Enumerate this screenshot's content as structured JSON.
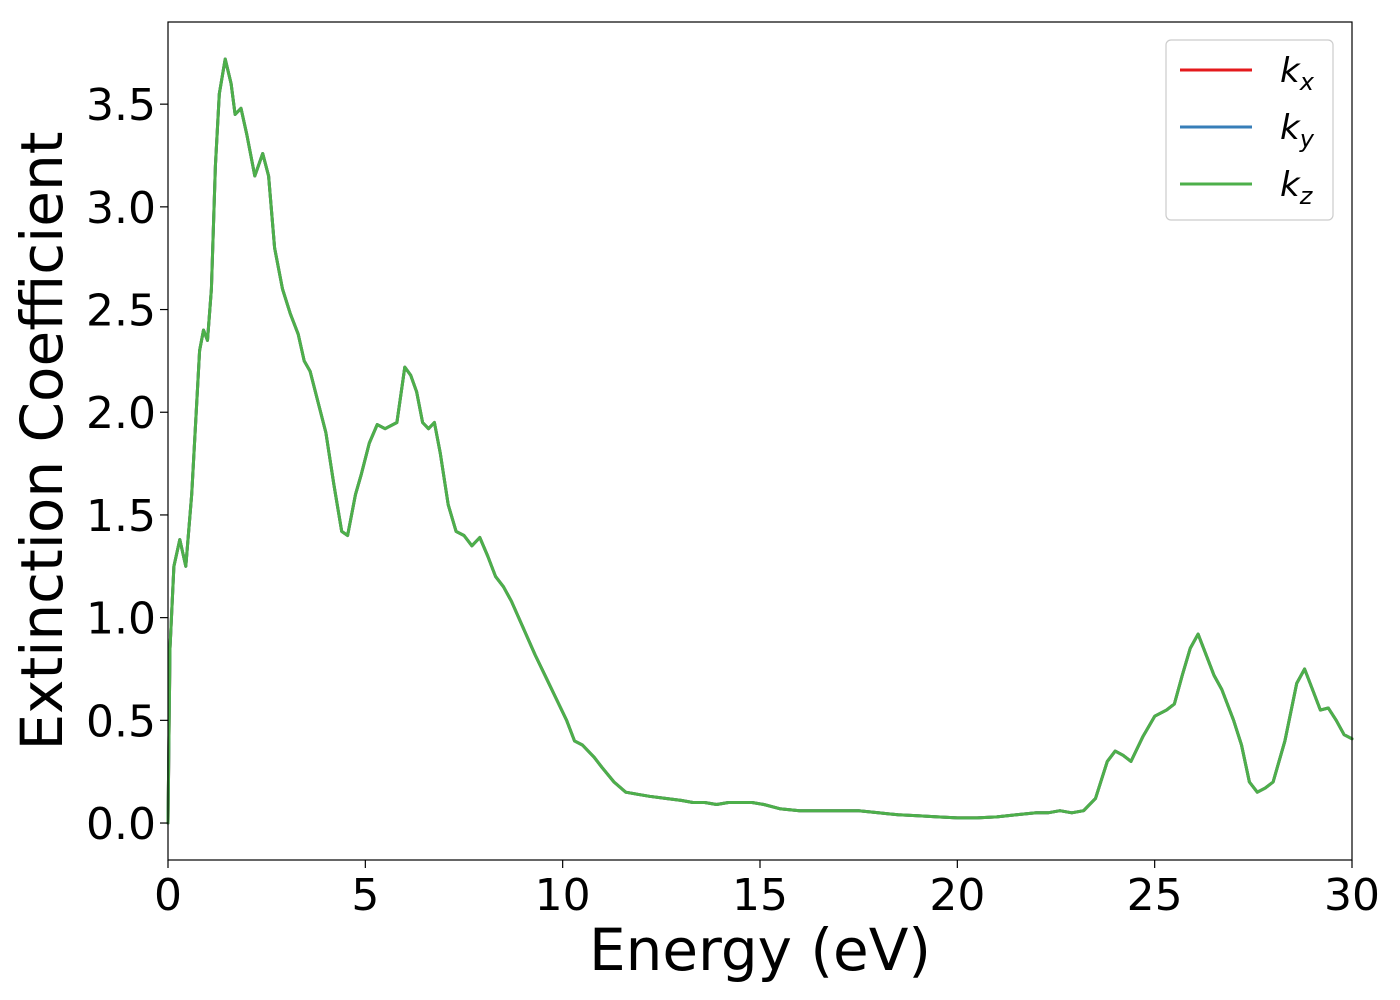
{
  "chart_data": {
    "type": "line",
    "xlabel": "Energy (eV)",
    "ylabel": "Extinction Coefficient",
    "xlim": [
      0,
      30
    ],
    "ylim": [
      -0.18,
      3.9
    ],
    "x_ticks": [
      0,
      5,
      10,
      15,
      20,
      25,
      30
    ],
    "y_ticks": [
      0.0,
      0.5,
      1.0,
      1.5,
      2.0,
      2.5,
      3.0,
      3.5
    ],
    "x_tick_labels": [
      "0",
      "5",
      "10",
      "15",
      "20",
      "25",
      "30"
    ],
    "y_tick_labels": [
      "0.0",
      "0.5",
      "1.0",
      "1.5",
      "2.0",
      "2.5",
      "3.0",
      "3.5"
    ],
    "grid": false,
    "legend_position": "top-right",
    "series": [
      {
        "name": "k",
        "subscript": "x",
        "color": "#e41a1c"
      },
      {
        "name": "k",
        "subscript": "y",
        "color": "#377eb8"
      },
      {
        "name": "k",
        "subscript": "z",
        "color": "#4daf4a"
      }
    ],
    "x": [
      0,
      0.05,
      0.15,
      0.3,
      0.45,
      0.6,
      0.8,
      0.9,
      1.0,
      1.1,
      1.2,
      1.3,
      1.45,
      1.6,
      1.7,
      1.85,
      2.0,
      2.2,
      2.4,
      2.55,
      2.7,
      2.9,
      3.1,
      3.3,
      3.45,
      3.6,
      3.8,
      4.0,
      4.2,
      4.4,
      4.55,
      4.75,
      4.9,
      5.1,
      5.3,
      5.5,
      5.8,
      6.0,
      6.15,
      6.3,
      6.45,
      6.6,
      6.75,
      6.9,
      7.1,
      7.3,
      7.5,
      7.7,
      7.9,
      8.1,
      8.3,
      8.5,
      8.7,
      9.0,
      9.3,
      9.6,
      9.9,
      10.1,
      10.3,
      10.5,
      10.8,
      11.0,
      11.3,
      11.6,
      11.9,
      12.2,
      12.6,
      13.0,
      13.3,
      13.6,
      13.9,
      14.2,
      14.5,
      14.8,
      15.1,
      15.5,
      16.0,
      16.5,
      17.0,
      17.5,
      18.0,
      18.5,
      19.0,
      19.5,
      20.0,
      20.5,
      21.0,
      21.5,
      22.0,
      22.3,
      22.6,
      22.9,
      23.2,
      23.5,
      23.8,
      24.0,
      24.2,
      24.4,
      24.7,
      25.0,
      25.3,
      25.5,
      25.7,
      25.9,
      26.1,
      26.3,
      26.5,
      26.7,
      27.0,
      27.2,
      27.4,
      27.6,
      27.8,
      28.0,
      28.3,
      28.6,
      28.8,
      29.0,
      29.2,
      29.4,
      29.6,
      29.8,
      30.0
    ],
    "values": [
      0.0,
      0.85,
      1.25,
      1.38,
      1.25,
      1.6,
      2.3,
      2.4,
      2.35,
      2.6,
      3.2,
      3.55,
      3.72,
      3.6,
      3.45,
      3.48,
      3.35,
      3.15,
      3.26,
      3.15,
      2.8,
      2.6,
      2.48,
      2.38,
      2.25,
      2.2,
      2.05,
      1.9,
      1.65,
      1.42,
      1.4,
      1.6,
      1.7,
      1.85,
      1.94,
      1.92,
      1.95,
      2.22,
      2.18,
      2.1,
      1.95,
      1.92,
      1.95,
      1.8,
      1.55,
      1.42,
      1.4,
      1.35,
      1.39,
      1.3,
      1.2,
      1.15,
      1.08,
      0.95,
      0.82,
      0.7,
      0.58,
      0.5,
      0.4,
      0.38,
      0.32,
      0.27,
      0.2,
      0.15,
      0.14,
      0.13,
      0.12,
      0.11,
      0.1,
      0.1,
      0.09,
      0.1,
      0.1,
      0.1,
      0.09,
      0.07,
      0.06,
      0.06,
      0.06,
      0.06,
      0.05,
      0.04,
      0.035,
      0.03,
      0.025,
      0.025,
      0.03,
      0.04,
      0.05,
      0.05,
      0.06,
      0.05,
      0.06,
      0.12,
      0.3,
      0.35,
      0.33,
      0.3,
      0.42,
      0.52,
      0.55,
      0.58,
      0.72,
      0.85,
      0.92,
      0.82,
      0.72,
      0.65,
      0.5,
      0.38,
      0.2,
      0.15,
      0.17,
      0.2,
      0.4,
      0.68,
      0.75,
      0.65,
      0.55,
      0.56,
      0.5,
      0.43,
      0.41
    ]
  }
}
